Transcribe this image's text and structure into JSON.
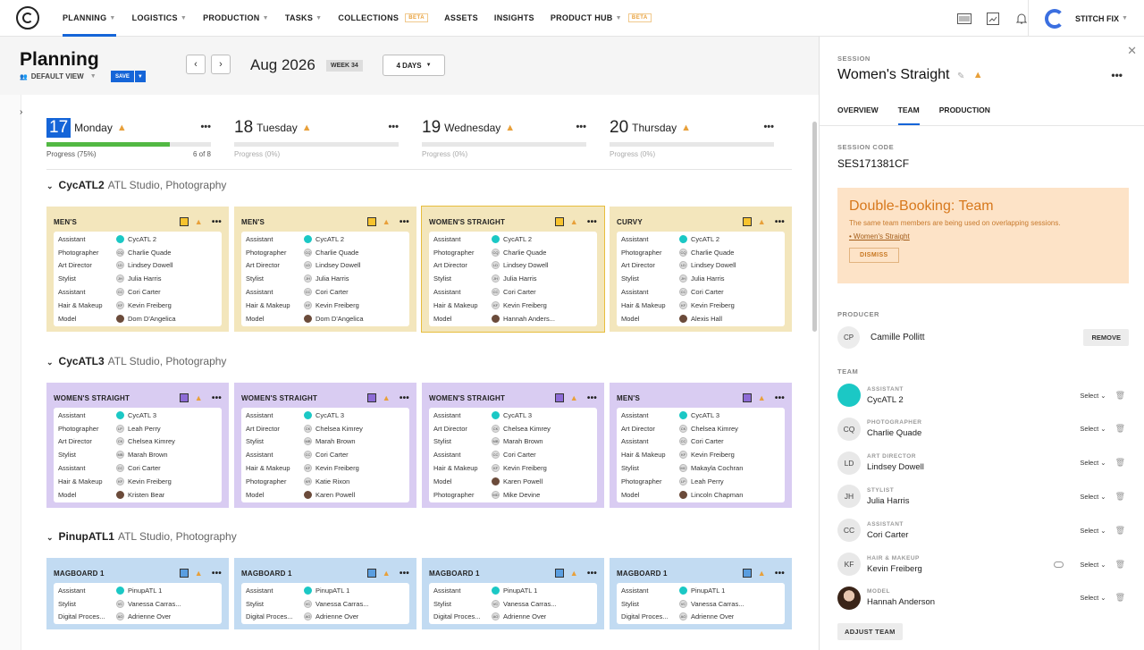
{
  "nav": {
    "items": [
      {
        "label": "PLANNING",
        "caret": true,
        "active": true
      },
      {
        "label": "LOGISTICS",
        "caret": true
      },
      {
        "label": "PRODUCTION",
        "caret": true
      },
      {
        "label": "TASKS",
        "caret": true
      },
      {
        "label": "COLLECTIONS",
        "beta": "BETA"
      },
      {
        "label": "ASSETS"
      },
      {
        "label": "INSIGHTS"
      },
      {
        "label": "PRODUCT HUB",
        "caret": true,
        "beta": "BETA"
      }
    ],
    "brand": "STITCH FIX",
    "icons": [
      "barcode-icon",
      "image-icon",
      "bell-icon"
    ]
  },
  "planning": {
    "title": "Planning",
    "view": "DEFAULT VIEW",
    "save": "SAVE",
    "month": "Aug 2026",
    "week": "WEEK 34",
    "days": "4 DAYS"
  },
  "days": [
    {
      "num": "17",
      "name": "Monday",
      "today": true,
      "progress_label": "Progress (75%)",
      "progress": 0.75,
      "count": "6 of 8"
    },
    {
      "num": "18",
      "name": "Tuesday",
      "progress_label": "Progress (0%)",
      "progress": 0,
      "count": ""
    },
    {
      "num": "19",
      "name": "Wednesday",
      "progress_label": "Progress (0%)",
      "progress": 0,
      "count": ""
    },
    {
      "num": "20",
      "name": "Thursday",
      "progress_label": "Progress (0%)",
      "progress": 0,
      "count": ""
    }
  ],
  "groups": [
    {
      "name": "CycATL2",
      "sub": "ATL Studio, Photography",
      "color": "yellow",
      "cards": [
        {
          "title": "MEN'S",
          "rows": [
            [
              "Assistant",
              "CycATL 2",
              "teal"
            ],
            [
              "Photographer",
              "Charlie Quade",
              "CQ"
            ],
            [
              "Art Director",
              "Lindsey Dowell",
              "LD"
            ],
            [
              "Stylist",
              "Julia Harris",
              "JH"
            ],
            [
              "Assistant",
              "Cori Carter",
              "CC"
            ],
            [
              "Hair & Makeup",
              "Kevin Freiberg",
              "KF"
            ],
            [
              "Model",
              "Dom D'Angelica",
              "photo"
            ]
          ]
        },
        {
          "title": "MEN'S",
          "rows": [
            [
              "Assistant",
              "CycATL 2",
              "teal"
            ],
            [
              "Photographer",
              "Charlie Quade",
              "CQ"
            ],
            [
              "Art Director",
              "Lindsey Dowell",
              "LD"
            ],
            [
              "Stylist",
              "Julia Harris",
              "JH"
            ],
            [
              "Assistant",
              "Cori Carter",
              "CC"
            ],
            [
              "Hair & Makeup",
              "Kevin Freiberg",
              "KF"
            ],
            [
              "Model",
              "Dom D'Angelica",
              "photo"
            ]
          ]
        },
        {
          "title": "WOMEN'S STRAIGHT",
          "selected": true,
          "rows": [
            [
              "Assistant",
              "CycATL 2",
              "teal"
            ],
            [
              "Photographer",
              "Charlie Quade",
              "CQ"
            ],
            [
              "Art Director",
              "Lindsey Dowell",
              "LD"
            ],
            [
              "Stylist",
              "Julia Harris",
              "JH"
            ],
            [
              "Assistant",
              "Cori Carter",
              "CC"
            ],
            [
              "Hair & Makeup",
              "Kevin Freiberg",
              "KF"
            ],
            [
              "Model",
              "Hannah Anders...",
              "photo"
            ]
          ]
        },
        {
          "title": "CURVY",
          "rows": [
            [
              "Assistant",
              "CycATL 2",
              "teal"
            ],
            [
              "Photographer",
              "Charlie Quade",
              "CQ"
            ],
            [
              "Art Director",
              "Lindsey Dowell",
              "LD"
            ],
            [
              "Stylist",
              "Julia Harris",
              "JH"
            ],
            [
              "Assistant",
              "Cori Carter",
              "CC"
            ],
            [
              "Hair & Makeup",
              "Kevin Freiberg",
              "KF"
            ],
            [
              "Model",
              "Alexis Hall",
              "photo"
            ]
          ]
        }
      ]
    },
    {
      "name": "CycATL3",
      "sub": "ATL Studio, Photography",
      "color": "purple",
      "cards": [
        {
          "title": "WOMEN'S STRAIGHT",
          "rows": [
            [
              "Assistant",
              "CycATL 3",
              "teal"
            ],
            [
              "Photographer",
              "Leah Perry",
              "LP"
            ],
            [
              "Art Director",
              "Chelsea Kimrey",
              "CK"
            ],
            [
              "Stylist",
              "Marah Brown",
              "MB"
            ],
            [
              "Assistant",
              "Cori Carter",
              "CC"
            ],
            [
              "Hair & Makeup",
              "Kevin Freiberg",
              "KF"
            ],
            [
              "Model",
              "Kristen Bear",
              "photo"
            ]
          ]
        },
        {
          "title": "WOMEN'S STRAIGHT",
          "rows": [
            [
              "Assistant",
              "CycATL 3",
              "teal"
            ],
            [
              "Art Director",
              "Chelsea Kimrey",
              "CK"
            ],
            [
              "Stylist",
              "Marah Brown",
              "MB"
            ],
            [
              "Assistant",
              "Cori Carter",
              "CC"
            ],
            [
              "Hair & Makeup",
              "Kevin Freiberg",
              "KF"
            ],
            [
              "Photographer",
              "Katie Rixon",
              "KR"
            ],
            [
              "Model",
              "Karen Powell",
              "photo"
            ]
          ]
        },
        {
          "title": "WOMEN'S STRAIGHT",
          "rows": [
            [
              "Assistant",
              "CycATL 3",
              "teal"
            ],
            [
              "Art Director",
              "Chelsea Kimrey",
              "CK"
            ],
            [
              "Stylist",
              "Marah Brown",
              "MB"
            ],
            [
              "Assistant",
              "Cori Carter",
              "CC"
            ],
            [
              "Hair & Makeup",
              "Kevin Freiberg",
              "KF"
            ],
            [
              "Model",
              "Karen Powell",
              "photo"
            ],
            [
              "Photographer",
              "Mike Devine",
              "MD"
            ]
          ]
        },
        {
          "title": "MEN'S",
          "rows": [
            [
              "Assistant",
              "CycATL 3",
              "teal"
            ],
            [
              "Art Director",
              "Chelsea Kimrey",
              "CK"
            ],
            [
              "Assistant",
              "Cori Carter",
              "CC"
            ],
            [
              "Hair & Makeup",
              "Kevin Freiberg",
              "KF"
            ],
            [
              "Stylist",
              "Makayla Cochran",
              "MC"
            ],
            [
              "Photographer",
              "Leah Perry",
              "LP"
            ],
            [
              "Model",
              "Lincoln Chapman",
              "photo"
            ]
          ]
        }
      ]
    },
    {
      "name": "PinupATL1",
      "sub": "ATL Studio, Photography",
      "color": "blue",
      "cards": [
        {
          "title": "MAGBOARD 1",
          "rows": [
            [
              "Assistant",
              "PinupATL 1",
              "teal"
            ],
            [
              "Stylist",
              "Vanessa Carras...",
              "VC"
            ],
            [
              "Digital Proces...",
              "Adrienne Over",
              "AO"
            ]
          ]
        },
        {
          "title": "MAGBOARD 1",
          "rows": [
            [
              "Assistant",
              "PinupATL 1",
              "teal"
            ],
            [
              "Stylist",
              "Vanessa Carras...",
              "VC"
            ],
            [
              "Digital Proces...",
              "Adrienne Over",
              "AO"
            ]
          ]
        },
        {
          "title": "MAGBOARD 1",
          "rows": [
            [
              "Assistant",
              "PinupATL 1",
              "teal"
            ],
            [
              "Stylist",
              "Vanessa Carras...",
              "VC"
            ],
            [
              "Digital Proces...",
              "Adrienne Over",
              "AO"
            ]
          ]
        },
        {
          "title": "MAGBOARD 1",
          "rows": [
            [
              "Assistant",
              "PinupATL 1",
              "teal"
            ],
            [
              "Stylist",
              "Vanessa Carras...",
              "VC"
            ],
            [
              "Digital Proces...",
              "Adrienne Over",
              "AO"
            ]
          ]
        }
      ]
    }
  ],
  "panel": {
    "session_label": "SESSION",
    "session_title": "Women's Straight",
    "tabs": [
      "OVERVIEW",
      "TEAM",
      "PRODUCTION"
    ],
    "active_tab": "TEAM",
    "code_label": "SESSION CODE",
    "code": "SES171381CF",
    "alert": {
      "title": "Double-Booking: Team",
      "text": "The same team members are being used on overlapping sessions.",
      "link": "Women's Straight",
      "dismiss": "DISMISS"
    },
    "producer_label": "PRODUCER",
    "producer": {
      "initials": "CP",
      "name": "Camille Pollitt",
      "remove": "REMOVE"
    },
    "team_label": "TEAM",
    "team": [
      {
        "role": "ASSISTANT",
        "name": "CycATL 2",
        "avatar": "teal",
        "initials": ""
      },
      {
        "role": "PHOTOGRAPHER",
        "name": "Charlie Quade",
        "initials": "CQ"
      },
      {
        "role": "ART DIRECTOR",
        "name": "Lindsey Dowell",
        "initials": "LD"
      },
      {
        "role": "STYLIST",
        "name": "Julia Harris",
        "initials": "JH"
      },
      {
        "role": "ASSISTANT",
        "name": "Cori Carter",
        "initials": "CC"
      },
      {
        "role": "HAIR & MAKEUP",
        "name": "Kevin Freiberg",
        "initials": "KF",
        "toggle": true
      },
      {
        "role": "MODEL",
        "name": "Hannah Anderson",
        "avatar": "photo",
        "initials": ""
      }
    ],
    "select_label": "Select",
    "adjust": "ADJUST TEAM"
  },
  "colors": {
    "accent": "#1565d8",
    "warning": "#e8a03a",
    "yellow_card": "#f3e6bc",
    "purple_card": "#d9ccf2",
    "blue_card": "#c2dbf2",
    "alert_bg": "#fde3c7"
  }
}
